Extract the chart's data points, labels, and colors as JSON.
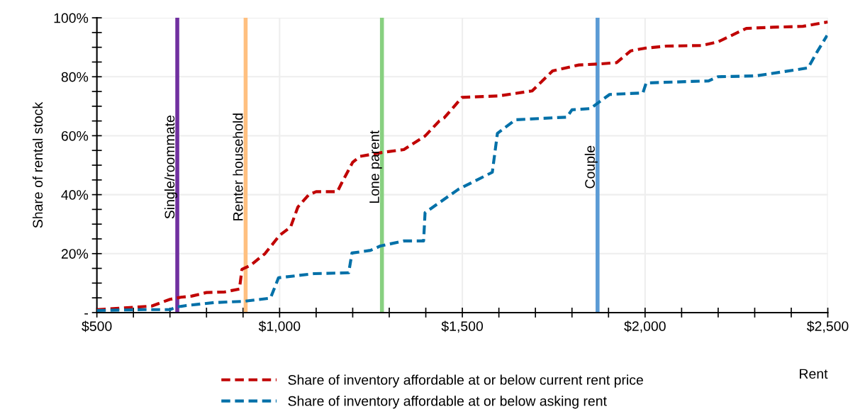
{
  "chart_data": {
    "type": "line",
    "xlabel": "Rent",
    "ylabel": "Share of rental stock",
    "series": [
      {
        "name": "Share of inventory affordable at or below current rent price",
        "color": "#c00000",
        "x": [
          500,
          600,
          650,
          700,
          730,
          760,
          800,
          850,
          890,
          897,
          920,
          960,
          1000,
          1030,
          1050,
          1080,
          1100,
          1158,
          1170,
          1200,
          1220,
          1280,
          1340,
          1398,
          1437,
          1450,
          1499,
          1600,
          1691,
          1747,
          1819,
          1870,
          1922,
          1961,
          2000,
          2058,
          2155,
          2199,
          2277,
          2350,
          2432,
          2500
        ],
        "values": [
          1,
          1.8,
          2.2,
          4.5,
          5.2,
          5.6,
          6.8,
          7,
          8,
          14.7,
          16,
          20,
          26.2,
          29,
          35.8,
          40,
          41,
          41,
          44,
          51,
          53,
          54.3,
          55.3,
          59.9,
          65,
          66,
          73,
          73.5,
          75.2,
          82,
          84,
          84.3,
          84.8,
          88.8,
          89.7,
          90.4,
          90.6,
          91.8,
          96.4,
          96.8,
          97.1,
          98.6
        ]
      },
      {
        "name": "Share of inventory affordable at or below asking rent",
        "color": "#0070a8",
        "x": [
          500,
          628,
          700,
          719,
          745,
          822,
          900,
          975,
          997,
          1094,
          1189,
          1198,
          1249,
          1276,
          1340,
          1394,
          1398,
          1489,
          1582,
          1596,
          1645,
          1786,
          1800,
          1850,
          1903,
          1994,
          2003,
          2174,
          2199,
          2304,
          2446,
          2471,
          2498
        ],
        "values": [
          0.7,
          1,
          1,
          1.9,
          2.4,
          3.4,
          3.8,
          4.9,
          11.8,
          13.2,
          13.5,
          20.2,
          21.1,
          22.6,
          24.3,
          24.3,
          33.9,
          41.8,
          47.6,
          60.8,
          65.4,
          66.3,
          68.8,
          69.2,
          74,
          74.5,
          77.9,
          78.6,
          80,
          80.3,
          83,
          88.5,
          94
        ]
      }
    ],
    "ref_lines": [
      {
        "axis": "x",
        "value": 720,
        "label": "Single/roommate",
        "color": "#7030a0"
      },
      {
        "axis": "x",
        "value": 907,
        "label": "Renter household",
        "color": "#ffc080"
      },
      {
        "axis": "x",
        "value": 1280,
        "label": "Lone parent",
        "color": "#88d080"
      },
      {
        "axis": "x",
        "value": 1870,
        "label": "Couple",
        "color": "#5b9bd5"
      }
    ],
    "xlim": [
      500,
      2500
    ],
    "xticks": [
      {
        "value": 500,
        "label": "$500"
      },
      {
        "value": 600,
        "label": null
      },
      {
        "value": 700,
        "label": null
      },
      {
        "value": 800,
        "label": null
      },
      {
        "value": 900,
        "label": null
      },
      {
        "value": 1000,
        "label": "$1,000"
      },
      {
        "value": 1100,
        "label": null
      },
      {
        "value": 1200,
        "label": null
      },
      {
        "value": 1300,
        "label": null
      },
      {
        "value": 1400,
        "label": null
      },
      {
        "value": 1500,
        "label": "$1,500"
      },
      {
        "value": 1600,
        "label": null
      },
      {
        "value": 1700,
        "label": null
      },
      {
        "value": 1800,
        "label": null
      },
      {
        "value": 1900,
        "label": null
      },
      {
        "value": 2000,
        "label": "$2,000"
      },
      {
        "value": 2100,
        "label": null
      },
      {
        "value": 2200,
        "label": null
      },
      {
        "value": 2300,
        "label": null
      },
      {
        "value": 2400,
        "label": null
      },
      {
        "value": 2500,
        "label": "$2,500"
      }
    ],
    "ylim": [
      0,
      100
    ],
    "yticks": [
      {
        "value": 0,
        "label": "-"
      },
      {
        "value": 5,
        "label": null
      },
      {
        "value": 10,
        "label": null
      },
      {
        "value": 15,
        "label": null
      },
      {
        "value": 20,
        "label": "20%"
      },
      {
        "value": 25,
        "label": null
      },
      {
        "value": 30,
        "label": null
      },
      {
        "value": 35,
        "label": null
      },
      {
        "value": 40,
        "label": "40%"
      },
      {
        "value": 45,
        "label": null
      },
      {
        "value": 50,
        "label": null
      },
      {
        "value": 55,
        "label": null
      },
      {
        "value": 60,
        "label": "60%"
      },
      {
        "value": 65,
        "label": null
      },
      {
        "value": 70,
        "label": null
      },
      {
        "value": 75,
        "label": null
      },
      {
        "value": 80,
        "label": "80%"
      },
      {
        "value": 85,
        "label": null
      },
      {
        "value": 90,
        "label": null
      },
      {
        "value": 95,
        "label": null
      },
      {
        "value": 100,
        "label": "100%"
      }
    ],
    "grid": true,
    "legend": "bottom",
    "line_style": "dashed",
    "marker": "none"
  }
}
